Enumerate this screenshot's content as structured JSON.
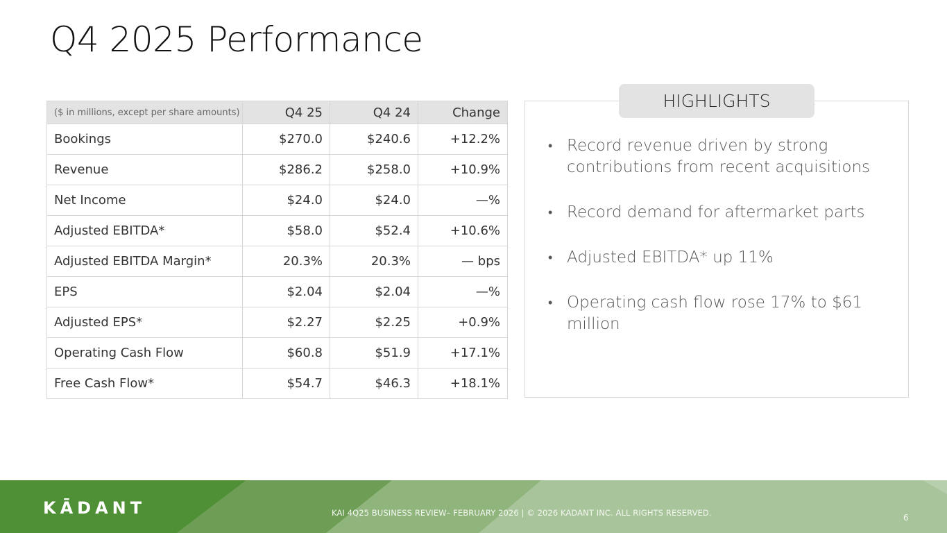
{
  "slide": {
    "title": "Q4 2025 Performance",
    "page_number": "6"
  },
  "table": {
    "caption": "($ in millions, except per share amounts)",
    "headers": [
      "Q4 25",
      "Q4 24",
      "Change"
    ],
    "rows": [
      {
        "metric": "Bookings",
        "q4_25": "$270.0",
        "q4_24": "$240.6",
        "change": "+12.2%"
      },
      {
        "metric": "Revenue",
        "q4_25": "$286.2",
        "q4_24": "$258.0",
        "change": "+10.9%"
      },
      {
        "metric": "Net Income",
        "q4_25": "$24.0",
        "q4_24": "$24.0",
        "change": "—%"
      },
      {
        "metric": "Adjusted EBITDA*",
        "q4_25": "$58.0",
        "q4_24": "$52.4",
        "change": "+10.6%"
      },
      {
        "metric": "Adjusted EBITDA Margin*",
        "q4_25": "20.3%",
        "q4_24": "20.3%",
        "change": "— bps"
      },
      {
        "metric": "EPS",
        "q4_25": "$2.04",
        "q4_24": "$2.04",
        "change": "—%"
      },
      {
        "metric": "Adjusted EPS*",
        "q4_25": "$2.27",
        "q4_24": "$2.25",
        "change": "+0.9%"
      },
      {
        "metric": "Operating Cash Flow",
        "q4_25": "$60.8",
        "q4_24": "$51.9",
        "change": "+17.1%"
      },
      {
        "metric": "Free Cash Flow*",
        "q4_25": "$54.7",
        "q4_24": "$46.3",
        "change": "+18.1%"
      }
    ]
  },
  "highlights": {
    "heading": "HIGHLIGHTS",
    "bullet_glyph": "•",
    "items": [
      "Record revenue driven by strong contributions from recent acquisitions",
      "Record demand for aftermarket parts",
      "Adjusted EBITDA* up 11%",
      "Operating cash flow rose 17% to $61 million"
    ]
  },
  "footer": {
    "logo_text": "KĀDANT",
    "text": "KAI 4Q25 BUSINESS REVIEW– FEBRUARY 2026  |  © 2026 KADANT INC. ALL RIGHTS RESERVED."
  },
  "colors": {
    "footer_dark_green": "#4f8f35",
    "footer_mid_green": "#6e9e55",
    "footer_light_green": "#a8c49a",
    "header_gray": "#e3e3e3"
  }
}
